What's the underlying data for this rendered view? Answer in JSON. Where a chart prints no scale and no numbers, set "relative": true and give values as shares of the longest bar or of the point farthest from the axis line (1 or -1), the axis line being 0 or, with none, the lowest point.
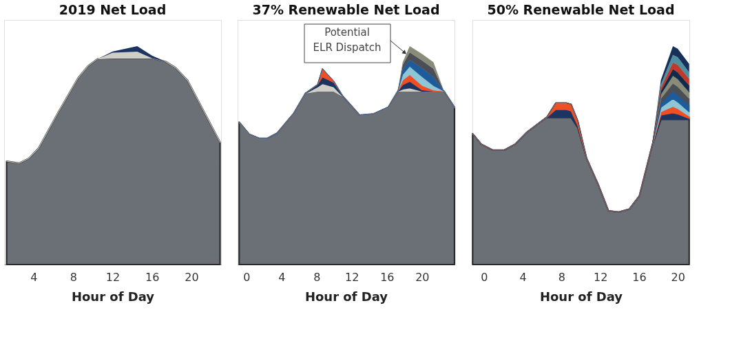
{
  "chart_data": [
    {
      "type": "area",
      "stacked": true,
      "relative": true,
      "title": "2019 Net Load",
      "xlabel": "Hour of Day",
      "xlim": [
        1,
        23
      ],
      "xticks": [
        4,
        8,
        12,
        16,
        20
      ],
      "x": [
        1.25,
        2.5,
        3.5,
        4.5,
        6.5,
        8.5,
        9.5,
        10.5,
        12,
        14.5,
        16,
        17.4,
        18.4,
        19.6,
        22.9
      ],
      "series": [
        {
          "color": "#6b7077",
          "values": [
            0.473,
            0.464,
            0.486,
            0.533,
            0.698,
            0.854,
            0.909,
            0.942,
            0.945,
            0.945,
            0.945,
            0.929,
            0.901,
            0.843,
            0.56
          ]
        },
        {
          "color": "#cfcfc8",
          "values": [
            0,
            0,
            0,
            0,
            0,
            0,
            0,
            0,
            0.025,
            0.03,
            0,
            0,
            0,
            0,
            0
          ]
        },
        {
          "color": "#1c3461",
          "values": [
            0,
            0,
            0,
            0,
            0,
            0,
            0,
            0,
            0.006,
            0.025,
            0.012,
            0,
            0,
            0,
            0
          ]
        }
      ]
    },
    {
      "type": "area",
      "stacked": true,
      "relative": true,
      "title": "37% Renewable Net Load",
      "xlabel": "Hour of Day",
      "xlim": [
        -1,
        23.7
      ],
      "xticks": [
        0,
        4,
        8,
        12,
        16,
        20
      ],
      "x": [
        -0.82,
        0.34,
        1.44,
        2.4,
        3.5,
        5.36,
        6.74,
        8.1,
        8.66,
        9.97,
        11.0,
        12.9,
        14.5,
        16.15,
        17.25,
        17.8,
        18.6,
        20,
        21.3,
        22.5,
        23.7
      ],
      "series": [
        {
          "color": "#6b7077",
          "values": [
            0.652,
            0.596,
            0.578,
            0.578,
            0.602,
            0.69,
            0.785,
            0.794,
            0.794,
            0.794,
            0.77,
            0.684,
            0.69,
            0.72,
            0.794,
            0.794,
            0.794,
            0.794,
            0.794,
            0.794,
            0.72
          ]
        },
        {
          "color": "#cfcfc8",
          "values": [
            0,
            0,
            0,
            0,
            0,
            0,
            0,
            0.02,
            0.035,
            0.02,
            0,
            0,
            0,
            0,
            0,
            0.01,
            0.015,
            0,
            0,
            0,
            0
          ]
        },
        {
          "color": "#1c3461",
          "values": [
            0,
            0,
            0,
            0,
            0,
            0,
            0,
            0.01,
            0.03,
            0.02,
            0,
            0,
            0,
            0,
            0,
            0.02,
            0.03,
            0.006,
            0,
            0,
            0
          ]
        },
        {
          "color": "#f04e23",
          "values": [
            0,
            0,
            0,
            0,
            0,
            0,
            0,
            0,
            0.038,
            0.005,
            0,
            0,
            0,
            0,
            0,
            0.02,
            0.03,
            0.02,
            0.005,
            0,
            0
          ]
        },
        {
          "color": "#8fc6d6",
          "values": [
            0,
            0,
            0,
            0,
            0,
            0,
            0,
            0,
            0,
            0,
            0,
            0,
            0,
            0,
            0,
            0.025,
            0.038,
            0.04,
            0.02,
            0,
            0
          ]
        },
        {
          "color": "#1d5b9a",
          "values": [
            0,
            0,
            0,
            0,
            0,
            0,
            0,
            0,
            0,
            0,
            0,
            0,
            0,
            0,
            0,
            0.025,
            0.03,
            0.04,
            0.04,
            0,
            0
          ]
        },
        {
          "color": "#4b4f55",
          "values": [
            0,
            0,
            0,
            0,
            0,
            0,
            0,
            0,
            0,
            0,
            0,
            0,
            0,
            0,
            0,
            0.02,
            0.035,
            0.035,
            0.038,
            0,
            0
          ]
        },
        {
          "color": "#8a8c7a",
          "values": [
            0,
            0,
            0,
            0,
            0,
            0,
            0,
            0,
            0,
            0,
            0,
            0,
            0,
            0,
            0,
            0.013,
            0.028,
            0.03,
            0.03,
            0,
            0
          ]
        }
      ],
      "annotations": [
        "Potential ELR Dispatch"
      ]
    },
    {
      "type": "area",
      "stacked": true,
      "relative": true,
      "title": "50% Renewable Net Load",
      "xlabel": "Hour of Day",
      "xlim": [
        -1.2,
        21.2
      ],
      "xticks": [
        0,
        4,
        8,
        12,
        16,
        20
      ],
      "x": [
        -1.18,
        -0.28,
        0.9,
        2.08,
        3.2,
        4.4,
        6.46,
        7.4,
        8.5,
        9.0,
        9.7,
        10.6,
        11.8,
        12.85,
        13.9,
        15.0,
        16.04,
        17.36,
        18.26,
        19.5,
        20,
        21.18
      ],
      "series": [
        {
          "color": "#6b7077",
          "values": [
            0.599,
            0.551,
            0.524,
            0.524,
            0.551,
            0.605,
            0.674,
            0.674,
            0.674,
            0.674,
            0.626,
            0.485,
            0.365,
            0.246,
            0.24,
            0.254,
            0.314,
            0.545,
            0.665,
            0.665,
            0.665,
            0.665
          ]
        },
        {
          "color": "#1c3461",
          "values": [
            0,
            0,
            0,
            0,
            0,
            0,
            0,
            0.036,
            0.036,
            0.03,
            0.01,
            0,
            0,
            0,
            0,
            0,
            0,
            0,
            0.02,
            0.03,
            0.025,
            0.005
          ]
        },
        {
          "color": "#f04e23",
          "values": [
            0,
            0,
            0,
            0,
            0,
            0,
            0,
            0.03,
            0.03,
            0.03,
            0.02,
            0,
            0,
            0,
            0,
            0,
            0,
            0,
            0.015,
            0.03,
            0.025,
            0.01
          ]
        },
        {
          "color": "#8fc6d6",
          "values": [
            0,
            0,
            0,
            0,
            0,
            0,
            0,
            0,
            0,
            0,
            0,
            0,
            0,
            0,
            0,
            0,
            0,
            0,
            0.02,
            0.035,
            0.03,
            0.02
          ]
        },
        {
          "color": "#1d5b9a",
          "values": [
            0,
            0,
            0,
            0,
            0,
            0,
            0,
            0,
            0,
            0,
            0,
            0,
            0,
            0,
            0,
            0,
            0,
            0,
            0.02,
            0.035,
            0.035,
            0.03
          ]
        },
        {
          "color": "#4b4f55",
          "values": [
            0,
            0,
            0,
            0,
            0,
            0,
            0,
            0,
            0,
            0,
            0,
            0,
            0,
            0,
            0,
            0,
            0,
            0,
            0.02,
            0.035,
            0.035,
            0.03
          ]
        },
        {
          "color": "#8a8c7a",
          "values": [
            0,
            0,
            0,
            0,
            0,
            0,
            0,
            0,
            0,
            0,
            0,
            0,
            0,
            0,
            0,
            0,
            0,
            0,
            0.02,
            0.035,
            0.035,
            0.03
          ]
        },
        {
          "color": "#0f2a4a",
          "values": [
            0,
            0,
            0,
            0,
            0,
            0,
            0,
            0,
            0,
            0,
            0,
            0,
            0,
            0,
            0,
            0,
            0,
            0,
            0.015,
            0.03,
            0.03,
            0.03
          ]
        },
        {
          "color": "#c0392b",
          "values": [
            0,
            0,
            0,
            0,
            0,
            0,
            0,
            0,
            0,
            0,
            0,
            0,
            0,
            0,
            0,
            0,
            0,
            0,
            0.015,
            0.03,
            0.035,
            0.03
          ]
        },
        {
          "color": "#4f8fa0",
          "values": [
            0,
            0,
            0,
            0,
            0,
            0,
            0,
            0,
            0,
            0,
            0,
            0,
            0,
            0,
            0,
            0,
            0,
            0,
            0.015,
            0.035,
            0.035,
            0.03
          ]
        },
        {
          "color": "#16305a",
          "values": [
            0,
            0,
            0,
            0,
            0,
            0,
            0,
            0,
            0,
            0,
            0,
            0,
            0,
            0,
            0,
            0,
            0,
            0,
            0.02,
            0.04,
            0.038,
            0.039
          ]
        }
      ]
    }
  ]
}
